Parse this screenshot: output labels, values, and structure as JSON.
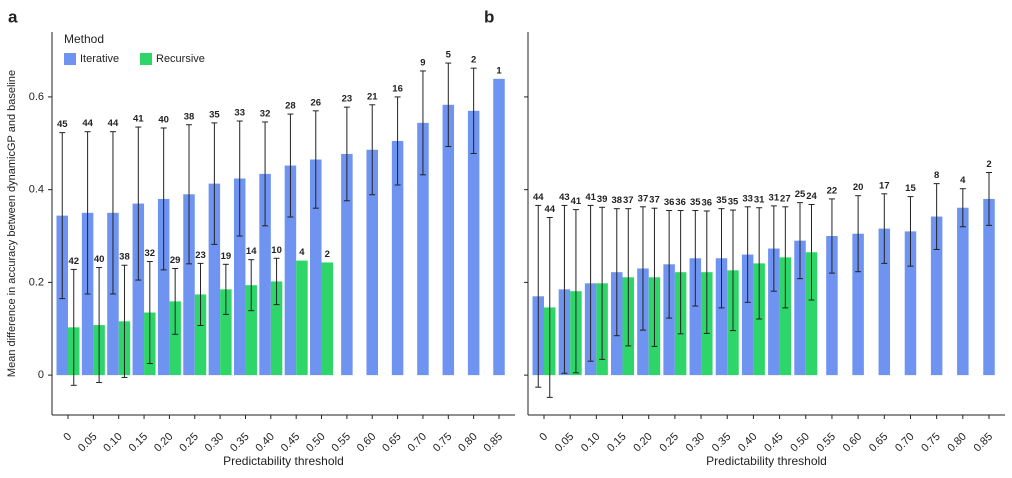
{
  "chart_data": [
    {
      "type": "bar",
      "panel": "a",
      "x_label": "Predictability threshold",
      "y_label": "Mean difference in accuracy between dynamicGP and baseline",
      "legend_title": "Method",
      "legend": "upper left",
      "categories": [
        "0",
        "0.05",
        "0.10",
        "0.15",
        "0.20",
        "0.25",
        "0.30",
        "0.35",
        "0.40",
        "0.45",
        "0.50",
        "0.55",
        "0.60",
        "0.65",
        "0.70",
        "0.75",
        "0.80",
        "0.85"
      ],
      "ylim": [
        -0.086,
        0.74
      ],
      "yticks": [
        0,
        0.2,
        0.4,
        0.6
      ],
      "ytick_labels": true,
      "series": [
        {
          "name": "Iterative",
          "color": "#6f93f0",
          "values": [
            0.344,
            0.35,
            0.35,
            0.37,
            0.38,
            0.39,
            0.413,
            0.424,
            0.434,
            0.452,
            0.465,
            0.477,
            0.486,
            0.505,
            0.544,
            0.583,
            0.57,
            0.639
          ],
          "errors": [
            0.179,
            0.175,
            0.175,
            0.165,
            0.153,
            0.15,
            0.131,
            0.124,
            0.112,
            0.111,
            0.105,
            0.101,
            0.097,
            0.095,
            0.112,
            0.09,
            0.092,
            null
          ],
          "counts": [
            45,
            44,
            44,
            41,
            40,
            38,
            35,
            33,
            32,
            28,
            26,
            23,
            21,
            16,
            9,
            5,
            2,
            1
          ]
        },
        {
          "name": "Recursive",
          "color": "#2ed66a",
          "values": [
            0.103,
            0.108,
            0.116,
            0.135,
            0.159,
            0.174,
            0.185,
            0.194,
            0.202,
            0.247,
            0.243,
            null,
            null,
            null,
            null,
            null,
            null,
            null
          ],
          "errors": [
            0.125,
            0.124,
            0.121,
            0.11,
            0.071,
            0.067,
            0.054,
            0.055,
            0.05,
            null,
            null,
            null,
            null,
            null,
            null,
            null,
            null,
            null
          ],
          "counts": [
            42,
            40,
            38,
            32,
            29,
            23,
            19,
            14,
            10,
            4,
            2,
            null,
            null,
            null,
            null,
            null,
            null,
            null
          ]
        }
      ]
    },
    {
      "type": "bar",
      "panel": "b",
      "x_label": "Predictability threshold",
      "categories": [
        "0",
        "0.05",
        "0.10",
        "0.15",
        "0.20",
        "0.25",
        "0.30",
        "0.35",
        "0.40",
        "0.45",
        "0.50",
        "0.55",
        "0.60",
        "0.65",
        "0.70",
        "0.75",
        "0.80",
        "0.85"
      ],
      "ylim": [
        -0.086,
        0.74
      ],
      "yticks": [
        0,
        0.2,
        0.4,
        0.6
      ],
      "ytick_labels": false,
      "series": [
        {
          "name": "Iterative",
          "color": "#6f93f0",
          "values": [
            0.17,
            0.185,
            0.198,
            0.222,
            0.23,
            0.239,
            0.252,
            0.252,
            0.26,
            0.273,
            0.29,
            0.3,
            0.305,
            0.316,
            0.31,
            0.342,
            0.361,
            0.38
          ],
          "errors": [
            0.196,
            0.181,
            0.168,
            0.137,
            0.133,
            0.116,
            0.103,
            0.107,
            0.103,
            0.092,
            0.082,
            0.08,
            0.082,
            0.075,
            0.075,
            0.071,
            0.041,
            0.057
          ],
          "counts": [
            44,
            43,
            41,
            38,
            37,
            36,
            35,
            35,
            33,
            31,
            25,
            22,
            20,
            17,
            15,
            8,
            4,
            2
          ]
        },
        {
          "name": "Recursive",
          "color": "#2ed66a",
          "values": [
            0.146,
            0.181,
            0.198,
            0.211,
            0.211,
            0.222,
            0.222,
            0.226,
            0.241,
            0.254,
            0.265,
            null,
            null,
            null,
            null,
            null,
            null,
            null
          ],
          "errors": [
            0.194,
            0.176,
            0.164,
            0.148,
            0.149,
            0.133,
            0.132,
            0.13,
            0.12,
            0.109,
            0.103,
            null,
            null,
            null,
            null,
            null,
            null,
            null
          ],
          "counts": [
            44,
            41,
            39,
            37,
            37,
            36,
            36,
            35,
            31,
            27,
            24,
            null,
            null,
            null,
            null,
            null,
            null,
            null
          ]
        }
      ]
    }
  ]
}
